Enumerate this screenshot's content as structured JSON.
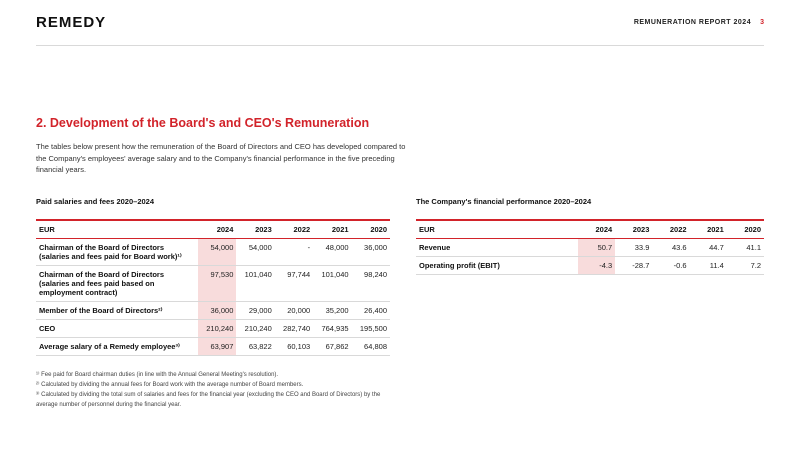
{
  "header": {
    "logo": "REMEDY",
    "report_title": "REMUNERATION REPORT 2024",
    "page_number": "3"
  },
  "section": {
    "title": "2. Development of the Board's and CEO's Remuneration",
    "intro": "The tables below present how the remuneration of the Board of Directors and CEO has developed compared to the Company's employees' average salary and to the Company's financial performance in the five preceding financial years."
  },
  "salaries_table": {
    "title": "Paid salaries and fees 2020–2024",
    "columns": [
      "EUR",
      "2024",
      "2023",
      "2022",
      "2021",
      "2020"
    ],
    "rows": [
      {
        "label": "Chairman of the Board of Directors (salaries and fees paid for Board work)¹⁾",
        "values": [
          "54,000",
          "54,000",
          "-",
          "48,000",
          "36,000"
        ]
      },
      {
        "label": "Chairman of the Board of Directors (salaries and fees paid based on employment contract)",
        "values": [
          "97,530",
          "101,040",
          "97,744",
          "101,040",
          "98,240"
        ]
      },
      {
        "label": "Member of the Board of Directors²⁾",
        "values": [
          "36,000",
          "29,000",
          "20,000",
          "35,200",
          "26,400"
        ]
      },
      {
        "label": "CEO",
        "values": [
          "210,240",
          "210,240",
          "282,740",
          "764,935",
          "195,500"
        ]
      },
      {
        "label": "Average salary of a Remedy employee³⁾",
        "values": [
          "63,907",
          "63,822",
          "60,103",
          "67,862",
          "64,808"
        ]
      }
    ]
  },
  "performance_table": {
    "title": "The Company's financial performance 2020–2024",
    "columns": [
      "EUR",
      "2024",
      "2023",
      "2022",
      "2021",
      "2020"
    ],
    "rows": [
      {
        "label": "Revenue",
        "values": [
          "50.7",
          "33.9",
          "43.6",
          "44.7",
          "41.1"
        ]
      },
      {
        "label": "Operating profit (EBIT)",
        "values": [
          "-4.3",
          "-28.7",
          "-0.6",
          "11.4",
          "7.2"
        ]
      }
    ]
  },
  "footnotes": [
    "¹⁾ Fee paid for Board chairman duties (in line with the Annual General Meeting's resolution).",
    "²⁾ Calculated by dividing the annual fees for Board work with the average number of Board members.",
    "³⁾ Calculated by dividing the total sum of salaries and fees for the financial year (excluding the CEO and Board of Directors) by the average number of personnel during the financial year."
  ],
  "colors": {
    "accent_red": "#d2232a",
    "highlight_pink": "#f8dcdc"
  }
}
